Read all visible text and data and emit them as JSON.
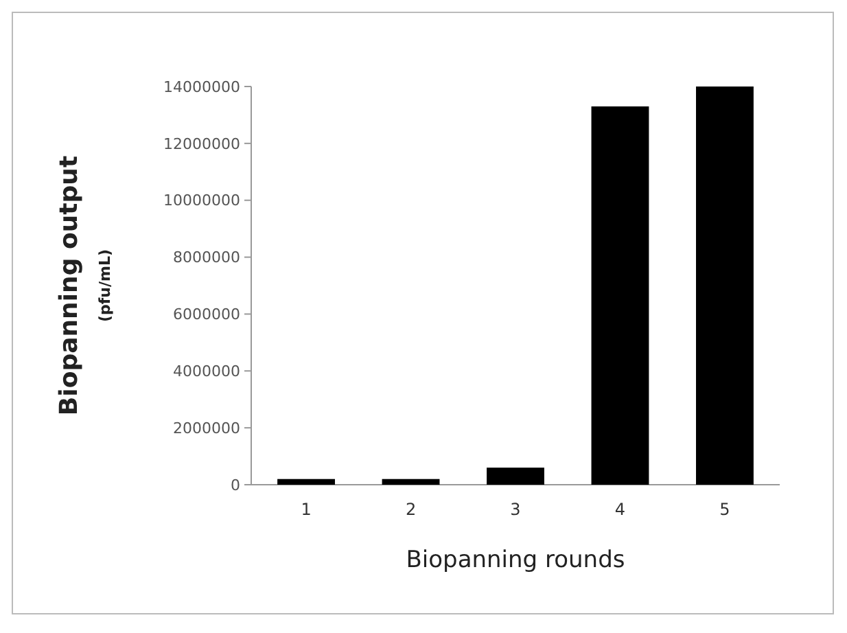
{
  "chart_data": {
    "type": "bar",
    "xlabel": "Biopanning rounds",
    "ylabel": "Biopanning output (pfu/mL)",
    "categories": [
      "1",
      "2",
      "3",
      "4",
      "5"
    ],
    "values": [
      200000,
      200000,
      600000,
      13300000,
      14000000
    ],
    "color": "#000000",
    "ylim": [
      0,
      14000000
    ],
    "yticks": [
      0,
      2000000,
      4000000,
      6000000,
      8000000,
      10000000,
      12000000,
      14000000
    ],
    "grid": false
  }
}
